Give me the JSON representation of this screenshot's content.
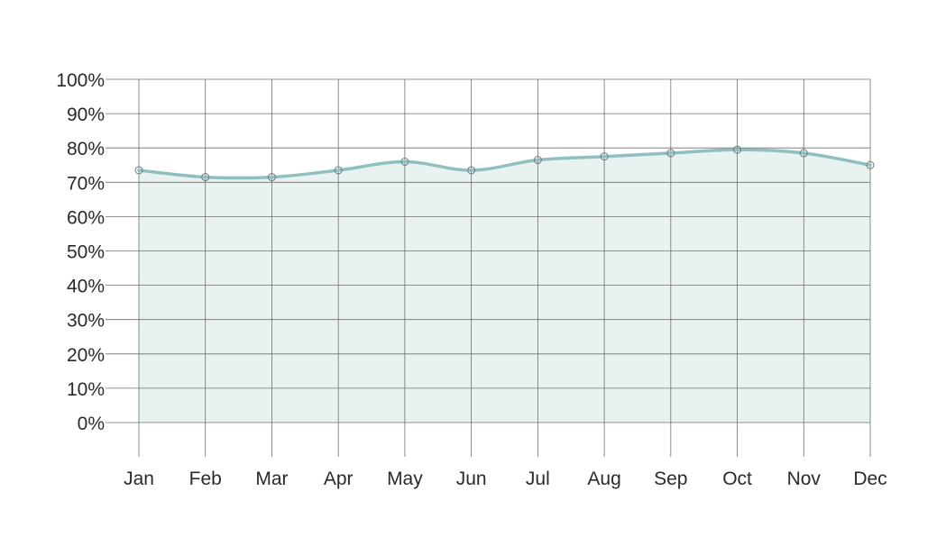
{
  "chart_data": {
    "type": "area",
    "categories": [
      "Jan",
      "Feb",
      "Mar",
      "Apr",
      "May",
      "Jun",
      "Jul",
      "Aug",
      "Sep",
      "Oct",
      "Nov",
      "Dec"
    ],
    "series": [
      {
        "values": [
          73.5,
          71.5,
          71.5,
          73.5,
          76,
          73.5,
          76.5,
          77.5,
          78.5,
          79.5,
          78.5,
          75
        ]
      }
    ],
    "ylim": [
      0,
      100
    ],
    "yticks": [
      0,
      10,
      20,
      30,
      40,
      50,
      60,
      70,
      80,
      90,
      100
    ],
    "ytick_labels": [
      "0%",
      "10%",
      "20%",
      "30%",
      "40%",
      "50%",
      "60%",
      "70%",
      "80%",
      "90%",
      "100%"
    ],
    "grid": true,
    "colors": {
      "line": "#8fbfbf",
      "fill": "#e8f2f1",
      "grid": "#6f6f6f"
    }
  }
}
